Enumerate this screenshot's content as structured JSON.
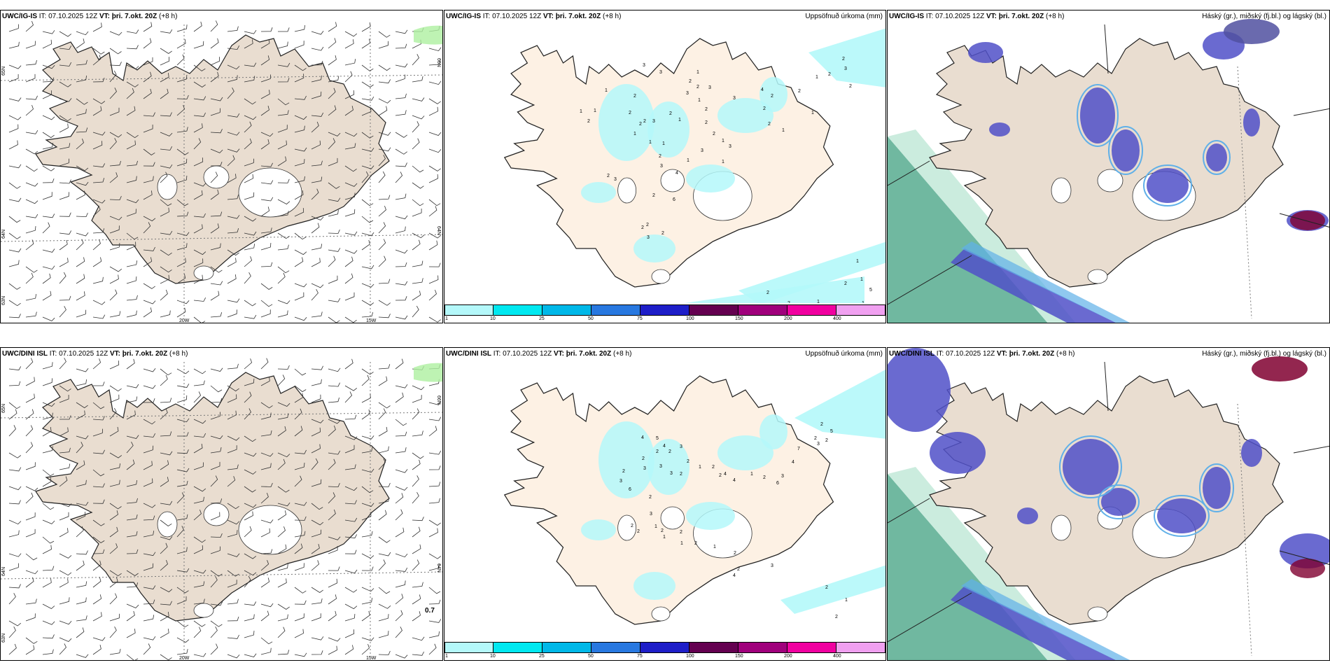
{
  "panels": [
    {
      "id": "wind-top",
      "model": "UWC/IG-IS",
      "it": "IT: 07.10.2025 12Z",
      "vt_label": "VT:",
      "vt": "þri. 7.okt. 20Z",
      "lead": "(+8 h)",
      "lon_labels": [
        "20W",
        "15W"
      ],
      "lat_labels": [
        "65N",
        "64N",
        "63N",
        "66N",
        "64N"
      ]
    },
    {
      "id": "precip-top",
      "model": "UWC/IG-IS",
      "it": "IT: 07.10.2025 12Z",
      "vt_label": "VT:",
      "vt": "þri. 7.okt. 20Z",
      "lead": "(+8 h)",
      "right_title": "Uppsöfnuð úrkoma (mm)"
    },
    {
      "id": "cloud-top",
      "model": "UWC/IG-IS",
      "it": "IT: 07.10.2025 12Z",
      "vt_label": "VT:",
      "vt": "þri. 7.okt. 20Z",
      "lead": "(+8 h)",
      "right_title": "Háský (gr.), miðský (fj.bl.) og lágský (bl.)"
    },
    {
      "id": "wind-bottom",
      "model": "UWC/DINI ISL",
      "it": "IT: 07.10.2025 12Z",
      "vt_label": "VT:",
      "vt": "þri. 7.okt. 20Z",
      "lead": "(+8 h)",
      "lon_labels": [
        "20W",
        "15W"
      ],
      "lat_labels": [
        "65N",
        "64N",
        "63N",
        "66N",
        "64N"
      ],
      "max_value": "0.7"
    },
    {
      "id": "precip-bottom",
      "model": "UWC/DINI ISL",
      "it": "IT: 07.10.2025 12Z",
      "vt_label": "VT:",
      "vt": "þri. 7.okt. 20Z",
      "lead": "(+8 h)",
      "right_title": "Uppsöfnuð úrkoma (mm)"
    },
    {
      "id": "cloud-bottom",
      "model": "UWC/DINI ISL",
      "it": "IT: 07.10.2025 12Z",
      "vt_label": "VT:",
      "vt": "þri. 7.okt. 20Z",
      "lead": "(+8 h)",
      "right_title": "Háský (gr.), miðský (fj.bl.) og lágský (bl.)"
    }
  ],
  "colorbar": {
    "ticks": [
      "1",
      "10",
      "25",
      "50",
      "75",
      "100",
      "150",
      "200",
      "400"
    ],
    "colors": [
      "#b4f8fa",
      "#00e8f0",
      "#00b8e8",
      "#2878e0",
      "#1e1ec8",
      "#640050",
      "#a0007c",
      "#f000a0",
      "#f0a0f0"
    ]
  },
  "precip_top_values": [
    "3",
    "2",
    "2",
    "3",
    "3",
    "1",
    "2",
    "2",
    "2",
    "1",
    "1",
    "1",
    "3",
    "2",
    "1",
    "1",
    "2",
    "2",
    "1",
    "3",
    "2",
    "2",
    "3",
    "1",
    "3",
    "4",
    "2",
    "2",
    "6",
    "2",
    "3",
    "2",
    "1",
    "3",
    "1",
    "2",
    "2",
    "2",
    "3",
    "1",
    "1",
    "3",
    "4",
    "2",
    "2",
    "2",
    "1",
    "1",
    "2",
    "1",
    "2",
    "3",
    "2",
    "2",
    "1",
    "1",
    "2",
    "1",
    "5",
    "1",
    "2",
    "2",
    "2",
    "3"
  ],
  "precip_bottom_values": [
    "4",
    "5",
    "4",
    "3",
    "2",
    "2",
    "2",
    "3",
    "3",
    "3",
    "2",
    "2",
    "1",
    "2",
    "2",
    "4",
    "4",
    "1",
    "2",
    "6",
    "3",
    "4",
    "7",
    "3",
    "2",
    "2",
    "2",
    "5",
    "2",
    "3",
    "6",
    "2",
    "3",
    "2",
    "2",
    "1",
    "2",
    "1",
    "2",
    "1",
    "2",
    "1",
    "2",
    "2",
    "4",
    "3",
    "2",
    "1",
    "2"
  ],
  "colors": {
    "land": "#e9ddd0",
    "land_precip": "#fdf1e4",
    "precip_light": "#b4f8fa",
    "cloud_low": "#5050c8",
    "cloud_mid": "#60b0e8",
    "cloud_high": "#40a080"
  }
}
